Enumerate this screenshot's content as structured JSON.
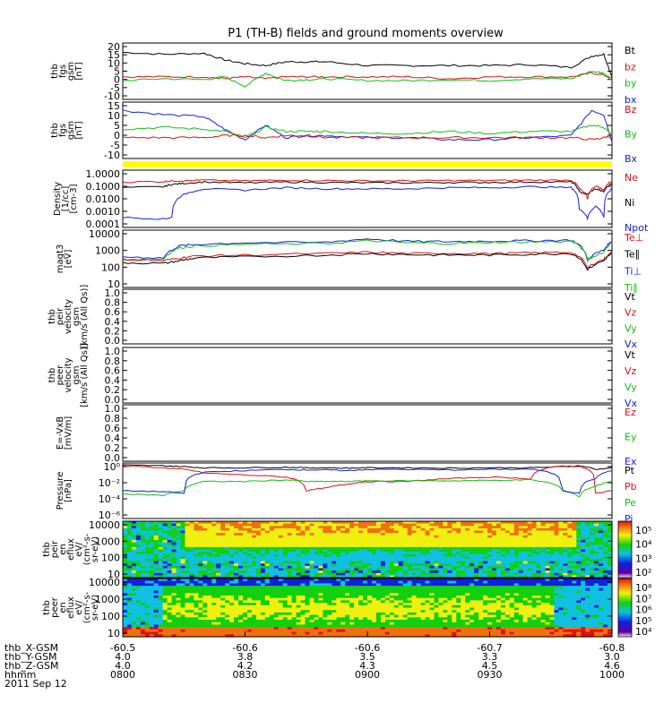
{
  "title": "P1 (TH-B) fields and ground moments overview",
  "colors": {
    "black": "#000000",
    "red": "#e01010",
    "green": "#10c010",
    "blue": "#1020e0",
    "yellow": "#ffff00"
  },
  "footer": {
    "rows": [
      {
        "label": "thb_X-GSM",
        "values": [
          "-60.5",
          "-60.6",
          "-60.6",
          "-60.7",
          "-60.8"
        ]
      },
      {
        "label": "thb_Y-GSM",
        "values": [
          "4.0",
          "3.8",
          "3.5",
          "3.3",
          "3.0"
        ]
      },
      {
        "label": "thb_Z-GSM",
        "values": [
          "4.0",
          "4.2",
          "4.3",
          "4.5",
          "4.6"
        ]
      },
      {
        "label": "hhmm",
        "values": [
          "0800",
          "0830",
          "0900",
          "0930",
          "1000"
        ]
      }
    ],
    "date": "2011 Sep 12"
  },
  "chart_data": [
    {
      "type": "line",
      "id": "fgs",
      "ylabel": [
        "thb",
        "fgs",
        "gsm",
        "[nT]"
      ],
      "yticks": [
        "20",
        "15",
        "10",
        "5",
        "0",
        "-5",
        "-10"
      ],
      "ylim": [
        -10,
        20
      ],
      "legend": [
        {
          "name": "Bt",
          "color": "black"
        },
        {
          "name": "bz",
          "color": "red"
        },
        {
          "name": "by",
          "color": "green"
        },
        {
          "name": "bx",
          "color": "blue"
        }
      ],
      "x": [
        0,
        10,
        20,
        25,
        30,
        35,
        40,
        45,
        50,
        60,
        70,
        80,
        90,
        100,
        110,
        115,
        118,
        120
      ],
      "series": [
        {
          "name": "Bt",
          "color": "black",
          "values": [
            15,
            14,
            14.5,
            11,
            9,
            8,
            10,
            10,
            10,
            8,
            8,
            8,
            8,
            8.5,
            7,
            13,
            14,
            2
          ]
        },
        {
          "name": "bz",
          "color": "red",
          "values": [
            2,
            2,
            2,
            1,
            2,
            1,
            2,
            2,
            2,
            2,
            2,
            1,
            2,
            2,
            2,
            4,
            3,
            1
          ]
        },
        {
          "name": "by",
          "color": "green",
          "values": [
            0,
            1,
            0.5,
            2,
            -3,
            4,
            0,
            0.5,
            1,
            0,
            0,
            0.5,
            0,
            1,
            1,
            5,
            4,
            0
          ]
        }
      ]
    },
    {
      "type": "line",
      "id": "fgs-gse",
      "ylabel": [
        "thb",
        "fgs",
        "gsm",
        "[nT]"
      ],
      "yticks": [
        "15",
        "10",
        "5",
        "0",
        "-5",
        "-10"
      ],
      "ylim": [
        -12,
        15
      ],
      "legend": [
        {
          "name": "Bz",
          "color": "red"
        },
        {
          "name": "By",
          "color": "green"
        },
        {
          "name": "Bx",
          "color": "blue"
        }
      ],
      "x": [
        0,
        10,
        20,
        25,
        30,
        35,
        40,
        45,
        50,
        60,
        70,
        80,
        90,
        100,
        110,
        115,
        118,
        120
      ],
      "series": [
        {
          "name": "Bx",
          "color": "blue",
          "values": [
            11,
            9,
            8,
            2,
            -3,
            4,
            -2,
            -1,
            -1,
            -2,
            -2,
            -3,
            -3,
            -2,
            -1,
            11,
            9,
            -4
          ]
        },
        {
          "name": "By",
          "color": "green",
          "values": [
            2,
            3,
            2,
            1,
            -2,
            3,
            1,
            1,
            1,
            0,
            0,
            1,
            0,
            1,
            1,
            4,
            3,
            -1
          ]
        },
        {
          "name": "Bz",
          "color": "red",
          "values": [
            -2,
            -2,
            -2,
            -1,
            -1,
            -2,
            -1,
            -1,
            -2,
            -2,
            -2,
            -2,
            -2,
            -2,
            -2,
            -3,
            -2,
            -1
          ]
        }
      ]
    },
    {
      "type": "line",
      "id": "density",
      "log": true,
      "ylabel": [
        "Density",
        "[1/cc]",
        "[cm-3]"
      ],
      "yticks": [
        "1.0000",
        "0.1000",
        "0.0100",
        "0.0010",
        "0.0001"
      ],
      "ylim": [
        0.0001,
        1
      ],
      "legend": [
        {
          "name": "Ne",
          "color": "red"
        },
        {
          "name": "Ni",
          "color": "black"
        },
        {
          "name": "Npot",
          "color": "blue"
        }
      ],
      "x": [
        0,
        10,
        12,
        15,
        20,
        30,
        40,
        50,
        60,
        70,
        80,
        90,
        100,
        110,
        112,
        114,
        116,
        118,
        120
      ],
      "series": [
        {
          "name": "Ni",
          "color": "black",
          "values": [
            0.06,
            0.07,
            0.1,
            0.12,
            0.15,
            0.13,
            0.15,
            0.14,
            0.13,
            0.13,
            0.14,
            0.14,
            0.15,
            0.15,
            0.03,
            0.02,
            0.05,
            0.03,
            0.12
          ]
        },
        {
          "name": "Ne",
          "color": "red",
          "values": [
            0.15,
            0.16,
            0.18,
            0.18,
            0.2,
            0.18,
            0.2,
            0.19,
            0.18,
            0.18,
            0.19,
            0.19,
            0.2,
            0.2,
            0.05,
            0.01,
            0.08,
            0.04,
            0.18
          ]
        },
        {
          "name": "Npot",
          "color": "blue",
          "values": [
            0.0005,
            0.0004,
            0.0005,
            0.02,
            0.05,
            0.04,
            0.06,
            0.05,
            0.05,
            0.05,
            0.06,
            0.06,
            0.07,
            0.06,
            0.002,
            0.0004,
            0.003,
            0.0005,
            0.05
          ]
        }
      ]
    },
    {
      "type": "line",
      "id": "magt3",
      "log": true,
      "ylabel": [
        "magt3",
        "[eV]"
      ],
      "yticks": [
        "10000",
        "1000",
        "100",
        "10"
      ],
      "ylim": [
        10,
        10000
      ],
      "legend": [
        {
          "name": "Te⊥",
          "color": "red"
        },
        {
          "name": "Te∥",
          "color": "black"
        },
        {
          "name": "Ti⊥",
          "color": "blue"
        },
        {
          "name": "Ti∥",
          "color": "green"
        }
      ],
      "x": [
        0,
        10,
        14,
        18,
        30,
        50,
        60,
        70,
        80,
        90,
        100,
        110,
        114,
        118,
        120
      ],
      "series": [
        {
          "name": "Ti⊥",
          "color": "blue",
          "values": [
            400,
            350,
            1500,
            1800,
            2200,
            2300,
            3500,
            2600,
            2500,
            2700,
            2800,
            3000,
            300,
            900,
            2600
          ]
        },
        {
          "name": "Ti∥",
          "color": "green",
          "values": [
            300,
            300,
            1200,
            1500,
            1800,
            2000,
            2800,
            2200,
            2000,
            2300,
            2400,
            2600,
            250,
            700,
            2200
          ]
        },
        {
          "name": "Te⊥",
          "color": "red",
          "values": [
            300,
            250,
            350,
            450,
            500,
            600,
            700,
            600,
            620,
            600,
            650,
            700,
            100,
            300,
            700
          ]
        },
        {
          "name": "Te∥",
          "color": "black",
          "values": [
            200,
            180,
            250,
            350,
            400,
            500,
            600,
            520,
            500,
            500,
            550,
            600,
            80,
            250,
            600
          ]
        }
      ]
    },
    {
      "type": "line",
      "id": "peir-vel",
      "ylabel": [
        "thb",
        "peir",
        "velocity",
        "gsm",
        "[km/s (All Qs)]"
      ],
      "yticks": [
        "1.0",
        "0.8",
        "0.6",
        "0.4",
        "0.2",
        "0.0"
      ],
      "ylim": [
        0,
        1
      ],
      "legend": [
        {
          "name": "Vt",
          "color": "black"
        },
        {
          "name": "Vz",
          "color": "red"
        },
        {
          "name": "Vy",
          "color": "green"
        },
        {
          "name": "Vx",
          "color": "blue"
        }
      ],
      "series": []
    },
    {
      "type": "line",
      "id": "peer-vel",
      "ylabel": [
        "thb",
        "peer",
        "velocity",
        "gsm",
        "[km/s (All Qs)]"
      ],
      "yticks": [
        "1.0",
        "0.8",
        "0.6",
        "0.4",
        "0.2",
        "0.0"
      ],
      "ylim": [
        0,
        1
      ],
      "legend": [
        {
          "name": "Vt",
          "color": "black"
        },
        {
          "name": "Vz",
          "color": "red"
        },
        {
          "name": "Vy",
          "color": "green"
        },
        {
          "name": "Vx",
          "color": "blue"
        }
      ],
      "series": []
    },
    {
      "type": "line",
      "id": "exb",
      "ylabel": [
        "E=-VxB",
        "[mV/m]"
      ],
      "yticks": [
        "1.0",
        "0.8",
        "0.6",
        "0.4",
        "0.2",
        "0.0"
      ],
      "ylim": [
        0,
        1
      ],
      "legend": [
        {
          "name": "Ez",
          "color": "red"
        },
        {
          "name": "Ey",
          "color": "green"
        },
        {
          "name": "Ex",
          "color": "blue"
        }
      ],
      "series": []
    },
    {
      "type": "line",
      "id": "pressure",
      "log": true,
      "ylabel": [
        "Pressure",
        "[nPa]"
      ],
      "yticks": [
        "10⁰",
        "10⁻²",
        "10⁻⁴",
        "10⁻⁶"
      ],
      "ylim": [
        1e-06,
        1
      ],
      "legend": [
        {
          "name": "Pt",
          "color": "black"
        },
        {
          "name": "Pb",
          "color": "red"
        },
        {
          "name": "Pe",
          "color": "green"
        },
        {
          "name": "Pi",
          "color": "blue"
        }
      ],
      "x": [
        0,
        10,
        15,
        20,
        30,
        40,
        45,
        50,
        55,
        60,
        70,
        80,
        90,
        100,
        108,
        112,
        116,
        120
      ],
      "series": [
        {
          "name": "Pt",
          "color": "black",
          "values": [
            0.6,
            0.5,
            0.4,
            0.3,
            0.3,
            0.35,
            0.3,
            0.3,
            0.28,
            0.3,
            0.3,
            0.28,
            0.3,
            0.3,
            0.4,
            0.5,
            0.2,
            0.3
          ]
        },
        {
          "name": "Pb",
          "color": "red",
          "values": [
            0.5,
            0.3,
            0.2,
            0.08,
            0.05,
            0.03,
            0.001,
            0.002,
            0.005,
            0.01,
            0.01,
            0.02,
            0.03,
            0.02,
            0.5,
            0.4,
            0.0005,
            0.001
          ]
        },
        {
          "name": "Pe",
          "color": "green",
          "values": [
            0.0005,
            0.0003,
            0.001,
            0.01,
            0.01,
            0.015,
            0.01,
            0.01,
            0.01,
            0.012,
            0.012,
            0.012,
            0.013,
            0.015,
            0.001,
            0.0002,
            0.003,
            0.01
          ]
        },
        {
          "name": "Pi",
          "color": "blue",
          "values": [
            0.001,
            0.0008,
            0.0005,
            0.1,
            0.15,
            0.2,
            0.18,
            0.18,
            0.15,
            0.2,
            0.2,
            0.18,
            0.2,
            0.22,
            0.001,
            0.0005,
            0.02,
            0.15
          ]
        }
      ]
    },
    {
      "type": "heatmap",
      "id": "peir-spec",
      "ylabel": [
        "thb",
        "peir",
        "en",
        "eflux",
        "eV/",
        "(cm²-s-",
        "sr-eV)"
      ],
      "yticks": [
        "10000",
        "1000",
        "100",
        "10"
      ],
      "colorbar_ticks": [
        "10⁵",
        "10⁴",
        "10³",
        "10²"
      ]
    },
    {
      "type": "heatmap",
      "id": "peer-spec",
      "ylabel": [
        "thb",
        "peer",
        "en",
        "eflux",
        "eV/",
        "(cm²-s-",
        "sr-eV)"
      ],
      "yticks": [
        "10000",
        "1000",
        "100",
        "10"
      ],
      "colorbar_ticks": [
        "10⁸",
        "10⁷",
        "10⁶",
        "10⁵",
        "10⁴"
      ]
    }
  ]
}
